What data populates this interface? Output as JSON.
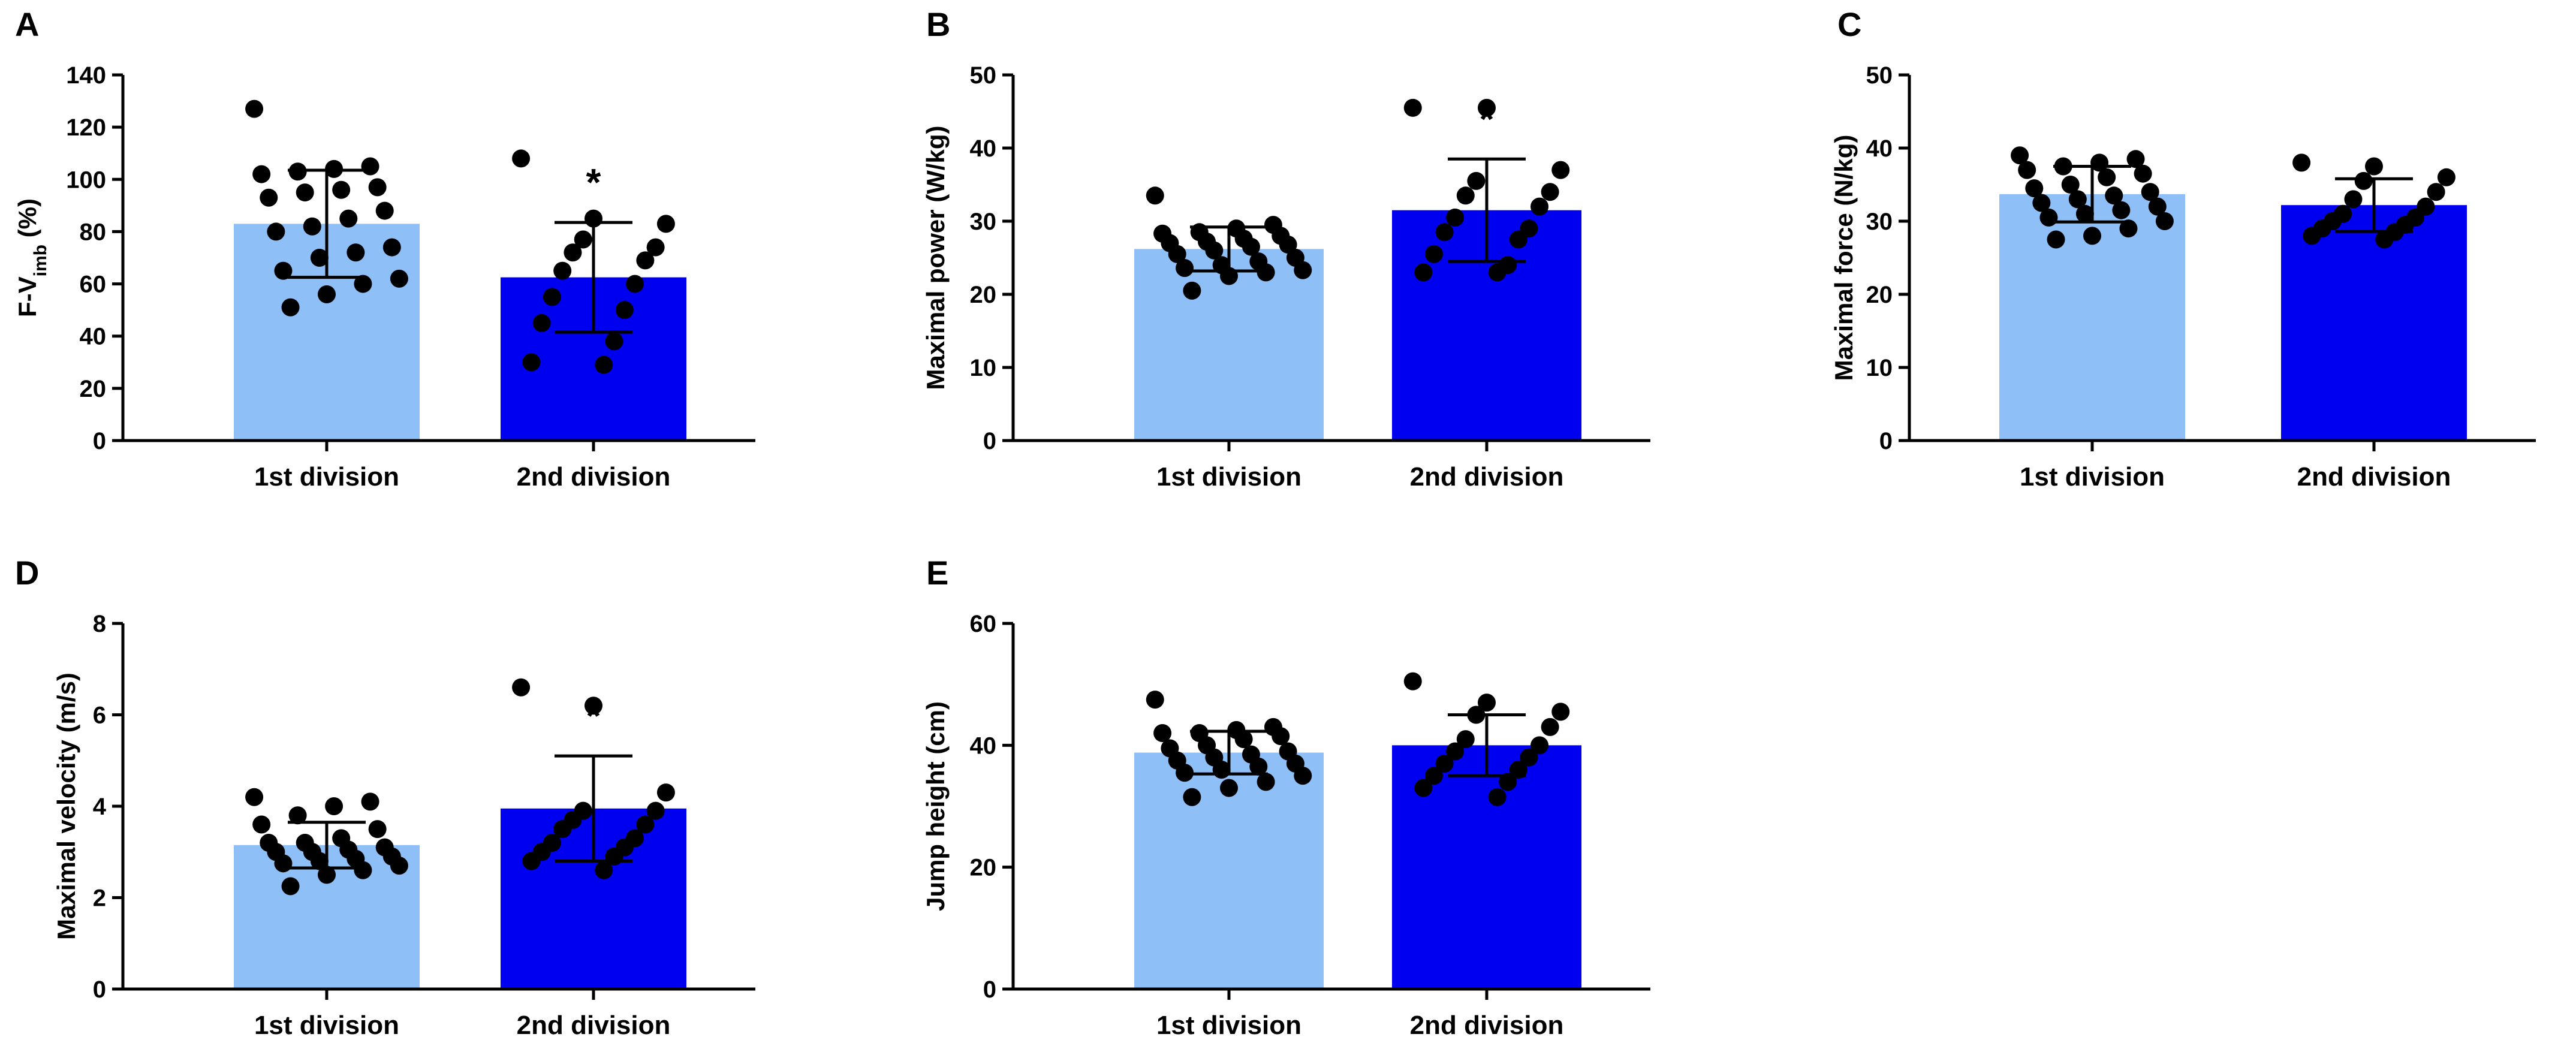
{
  "colors": {
    "first": "#8fbff7",
    "second": "#0000f0",
    "point": "#000000",
    "axis": "#000000"
  },
  "chart_data": [
    {
      "id": "A",
      "type": "bar",
      "ylabel": "F-V",
      "ylabel_sub": "imb",
      "ylabel_suffix": " (%)",
      "ylim": [
        0,
        140
      ],
      "yticks": [
        "0",
        "20",
        "40",
        "60",
        "80",
        "100",
        "120",
        "140"
      ],
      "categories": [
        "1st division",
        "2nd division"
      ],
      "values": [
        83,
        62.5
      ],
      "sd": [
        20.5,
        21
      ],
      "significance": [
        "",
        "*"
      ],
      "points": [
        [
          127,
          105,
          104,
          103,
          102,
          97,
          96,
          95,
          93,
          88,
          85,
          82,
          80,
          74,
          72,
          70,
          65,
          62,
          60,
          56,
          51
        ],
        [
          108,
          85,
          83,
          77,
          74,
          72,
          69,
          65,
          60,
          55,
          50,
          45,
          38,
          30,
          29
        ]
      ]
    },
    {
      "id": "B",
      "type": "bar",
      "ylabel": "Maximal power (W/kg)",
      "ylim": [
        0,
        50
      ],
      "yticks": [
        "0",
        "10",
        "20",
        "30",
        "40",
        "50"
      ],
      "categories": [
        "1st division",
        "2nd division"
      ],
      "values": [
        26.2,
        31.5
      ],
      "sd": [
        3,
        7
      ],
      "significance": [
        "",
        "*"
      ],
      "points": [
        [
          33.5,
          29.5,
          29,
          28.5,
          28.3,
          28,
          27.6,
          27.2,
          27,
          26.8,
          26.5,
          26,
          25.5,
          25,
          24.5,
          24,
          23.6,
          23.3,
          23,
          22.5,
          20.5
        ],
        [
          45.5,
          45.5,
          37,
          35.5,
          34,
          33.5,
          32,
          30.5,
          29,
          28.5,
          27.5,
          25.5,
          24,
          23,
          23
        ]
      ]
    },
    {
      "id": "C",
      "type": "bar",
      "ylabel": "Maximal force (N/kg)",
      "ylim": [
        0,
        50
      ],
      "yticks": [
        "0",
        "10",
        "20",
        "30",
        "40",
        "50"
      ],
      "categories": [
        "1st division",
        "2nd division"
      ],
      "values": [
        33.7,
        32.2
      ],
      "sd": [
        3.8,
        3.6
      ],
      "significance": [
        "",
        ""
      ],
      "points": [
        [
          39,
          38.5,
          38,
          37.5,
          37,
          36.5,
          36,
          35,
          34.5,
          34,
          33.5,
          33,
          32.5,
          32,
          31.5,
          31,
          30.5,
          30,
          29,
          28,
          27.5
        ],
        [
          38,
          37.5,
          36,
          35.5,
          34,
          33,
          32,
          31,
          30.5,
          30,
          29.5,
          29,
          28.5,
          28,
          27.5
        ]
      ]
    },
    {
      "id": "D",
      "type": "bar",
      "ylabel": "Maximal velocity (m/s)",
      "ylim": [
        0,
        8
      ],
      "yticks": [
        "0",
        "2",
        "4",
        "6",
        "8"
      ],
      "categories": [
        "1st division",
        "2nd division"
      ],
      "values": [
        3.15,
        3.95
      ],
      "sd": [
        0.5,
        1.15
      ],
      "significance": [
        "",
        "*"
      ],
      "points": [
        [
          4.2,
          4.1,
          4,
          3.8,
          3.6,
          3.5,
          3.3,
          3.2,
          3.2,
          3.1,
          3.05,
          3,
          3,
          2.9,
          2.85,
          2.8,
          2.75,
          2.7,
          2.6,
          2.5,
          2.25
        ],
        [
          6.6,
          6.2,
          4.3,
          3.9,
          3.9,
          3.7,
          3.6,
          3.5,
          3.3,
          3.2,
          3.1,
          3,
          2.9,
          2.8,
          2.6
        ]
      ]
    },
    {
      "id": "E",
      "type": "bar",
      "ylabel": "Jump height (cm)",
      "ylim": [
        0,
        60
      ],
      "yticks": [
        "0",
        "20",
        "40",
        "60"
      ],
      "categories": [
        "1st division",
        "2nd division"
      ],
      "values": [
        38.8,
        40
      ],
      "sd": [
        3.5,
        5
      ],
      "significance": [
        "",
        ""
      ],
      "points": [
        [
          47.5,
          43,
          42.5,
          42,
          42,
          41.5,
          41,
          40,
          39.5,
          39,
          38.5,
          38,
          37.5,
          37,
          36.5,
          36,
          35.5,
          35,
          34,
          33,
          31.5
        ],
        [
          50.5,
          47,
          45.5,
          45,
          43,
          41,
          40,
          39,
          38,
          37,
          36,
          35,
          34,
          33,
          31.5
        ]
      ]
    }
  ]
}
